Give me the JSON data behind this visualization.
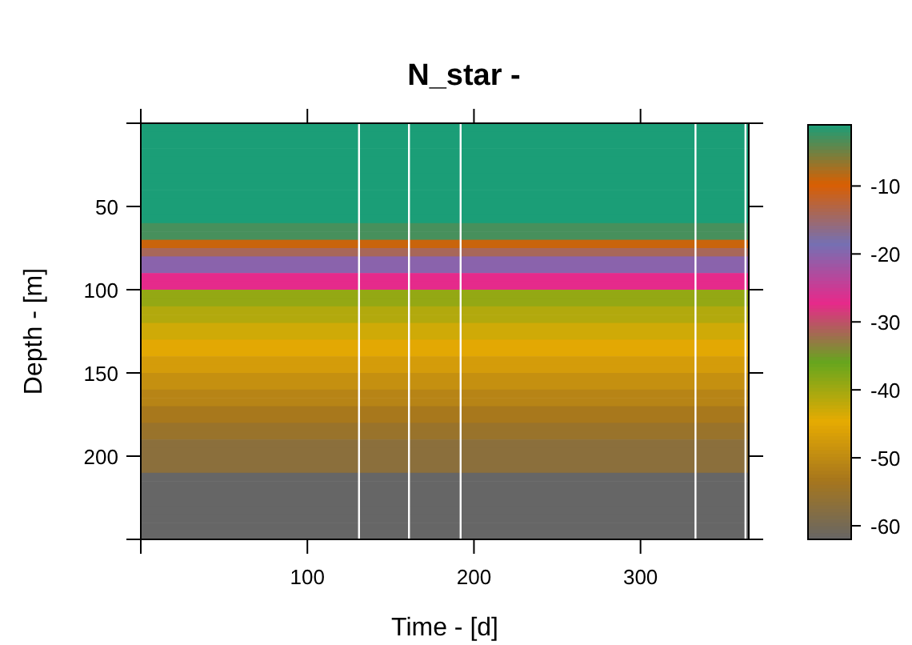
{
  "chart_data": {
    "type": "heatmap",
    "title": "N_star -",
    "xlabel": "Time - [d]",
    "ylabel": "Depth - [m]",
    "x": [
      91.25,
      273.75
    ],
    "y": [
      2.5,
      7.5,
      12.5,
      17.5,
      22.5,
      27.5,
      32.5,
      37.5,
      42.5,
      47.5,
      52.5,
      57.5,
      62.5,
      67.5,
      72.5,
      77.5,
      82.5,
      87.5,
      92.5,
      97.5,
      102.5,
      107.5,
      112.5,
      117.5,
      122.5,
      127.5,
      132.5,
      137.5,
      142.5,
      147.5,
      152.5,
      157.5,
      162.5,
      167.5,
      172.5,
      177.5,
      182.5,
      187.5,
      192.5,
      197.5,
      202.5,
      207.5,
      212.5,
      217.5,
      222.5,
      227.5,
      232.5,
      237.5,
      242.5,
      247.5
    ],
    "cells": [
      [
        -1,
        -1
      ],
      [
        -1,
        -1
      ],
      [
        -1,
        -1
      ],
      [
        -1,
        -1
      ],
      [
        -1,
        -1
      ],
      [
        -1,
        -1
      ],
      [
        -1,
        -1
      ],
      [
        -1,
        -1
      ],
      [
        -1,
        -1
      ],
      [
        -1,
        -1
      ],
      [
        -1,
        -1
      ],
      [
        -1,
        -1
      ],
      [
        -3,
        -3
      ],
      [
        -3,
        -3
      ],
      [
        -9,
        -9
      ],
      [
        -14,
        -14
      ],
      [
        -20,
        -20
      ],
      [
        -20,
        -20
      ],
      [
        -27,
        -27
      ],
      [
        -27,
        -27
      ],
      [
        -39,
        -39
      ],
      [
        -39,
        -39
      ],
      [
        -41,
        -41
      ],
      [
        -41,
        -41
      ],
      [
        -43,
        -43
      ],
      [
        -43,
        -43
      ],
      [
        -45,
        -45
      ],
      [
        -45,
        -45
      ],
      [
        -47,
        -47
      ],
      [
        -47,
        -47
      ],
      [
        -49,
        -49
      ],
      [
        -49,
        -49
      ],
      [
        -51,
        -51
      ],
      [
        -51,
        -51
      ],
      [
        -53,
        -53
      ],
      [
        -53,
        -53
      ],
      [
        -55,
        -55
      ],
      [
        -55,
        -55
      ],
      [
        -57,
        -57
      ],
      [
        -57,
        -57
      ],
      [
        -57,
        -57
      ],
      [
        -57,
        -57
      ],
      [
        -62,
        -62
      ],
      [
        -62,
        -62
      ],
      [
        -62,
        -62
      ],
      [
        -62,
        -62
      ],
      [
        -62,
        -62
      ],
      [
        -62,
        -62
      ],
      [
        -62,
        -62
      ],
      [
        -62,
        -62
      ]
    ],
    "colors": [
      "#666666",
      "#a6761d",
      "#e6ab02",
      "#66a61e",
      "#e7298a",
      "#7570b3",
      "#d95f02",
      "#1b9e77"
    ],
    "ref_lines": [
      {
        "axis": "x",
        "value": 131,
        "color": "#ffffff"
      },
      {
        "axis": "x",
        "value": 161,
        "color": "#ffffff"
      },
      {
        "axis": "x",
        "value": 192,
        "color": "#ffffff"
      },
      {
        "axis": "x",
        "value": 333,
        "color": "#ffffff"
      },
      {
        "axis": "x",
        "value": 363,
        "color": "#ffffff"
      }
    ],
    "xlim": [
      0,
      365
    ],
    "xticks": [
      {
        "value": 0,
        "label": null
      },
      100,
      200,
      300
    ],
    "ylim": [
      250,
      0
    ],
    "yticks": [
      {
        "value": 0,
        "label": null
      },
      50,
      100,
      150,
      200,
      {
        "value": 250,
        "label": null
      }
    ],
    "clim": [
      -62,
      -1
    ],
    "cticks": [
      -10,
      -20,
      -30,
      -40,
      -50,
      -60
    ]
  }
}
